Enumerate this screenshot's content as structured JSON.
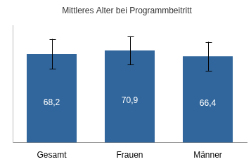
{
  "chart_data": {
    "type": "bar",
    "title": "Mittleres Alter bei Programmbeitritt",
    "categories": [
      "Gesamt",
      "Frauen",
      "Männer"
    ],
    "values": [
      68.2,
      70.9,
      66.4
    ],
    "value_labels": [
      "68,2",
      "70,9",
      "66,4"
    ],
    "errors": [
      11.5,
      10.8,
      11.1
    ],
    "color": "#31669c",
    "ylim": [
      0,
      90
    ],
    "yticks": [],
    "grid": false,
    "data_labels": true,
    "tick_labels": "x"
  }
}
